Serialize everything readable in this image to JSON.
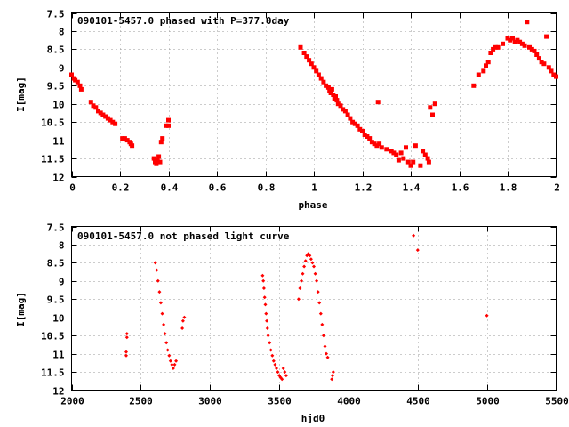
{
  "chart_data": [
    {
      "type": "scatter",
      "title": "090101-5457.0 phased with P=377.0day",
      "xlabel": "phase",
      "ylabel": "I[mag]",
      "xlim": [
        0,
        2
      ],
      "ylim": [
        7.5,
        12
      ],
      "y_reversed": true,
      "grid": true,
      "marker": "filled square",
      "marker_color": "#ff0000",
      "x_ticks": [
        "0",
        "0.2",
        "0.4",
        "0.6",
        "0.8",
        "1",
        "1.2",
        "1.4",
        "1.6",
        "1.8",
        "2"
      ],
      "y_ticks": [
        "7.5",
        "8",
        "8.5",
        "9",
        "9.5",
        "10",
        "10.5",
        "11",
        "11.5",
        "12"
      ],
      "series": [
        {
          "points": [
            [
              0.0,
              9.2
            ],
            [
              0.01,
              9.3
            ],
            [
              0.015,
              9.35
            ],
            [
              0.025,
              9.4
            ],
            [
              0.035,
              9.5
            ],
            [
              0.04,
              9.6
            ],
            [
              0.08,
              9.95
            ],
            [
              0.09,
              10.05
            ],
            [
              0.1,
              10.1
            ],
            [
              0.11,
              10.2
            ],
            [
              0.12,
              10.25
            ],
            [
              0.13,
              10.3
            ],
            [
              0.14,
              10.35
            ],
            [
              0.15,
              10.4
            ],
            [
              0.16,
              10.45
            ],
            [
              0.17,
              10.5
            ],
            [
              0.18,
              10.55
            ],
            [
              0.21,
              10.95
            ],
            [
              0.22,
              10.95
            ],
            [
              0.23,
              11.0
            ],
            [
              0.24,
              11.05
            ],
            [
              0.245,
              11.1
            ],
            [
              0.25,
              11.15
            ],
            [
              0.34,
              11.5
            ],
            [
              0.345,
              11.6
            ],
            [
              0.35,
              11.65
            ],
            [
              0.355,
              11.55
            ],
            [
              0.36,
              11.45
            ],
            [
              0.365,
              11.6
            ],
            [
              0.37,
              11.05
            ],
            [
              0.375,
              10.95
            ],
            [
              0.39,
              10.6
            ],
            [
              0.4,
              10.45
            ],
            [
              0.4,
              10.6
            ],
            [
              0.945,
              8.45
            ],
            [
              0.96,
              8.6
            ],
            [
              0.97,
              8.7
            ],
            [
              0.98,
              8.8
            ],
            [
              0.99,
              8.9
            ],
            [
              1.0,
              9.0
            ],
            [
              1.01,
              9.1
            ],
            [
              1.02,
              9.2
            ],
            [
              1.03,
              9.3
            ],
            [
              1.04,
              9.4
            ],
            [
              1.05,
              9.5
            ],
            [
              1.06,
              9.55
            ],
            [
              1.065,
              9.65
            ],
            [
              1.07,
              9.7
            ],
            [
              1.075,
              9.6
            ],
            [
              1.08,
              9.75
            ],
            [
              1.085,
              9.85
            ],
            [
              1.09,
              9.8
            ],
            [
              1.095,
              9.9
            ],
            [
              1.1,
              10.0
            ],
            [
              1.11,
              10.05
            ],
            [
              1.12,
              10.15
            ],
            [
              1.13,
              10.2
            ],
            [
              1.14,
              10.3
            ],
            [
              1.15,
              10.4
            ],
            [
              1.16,
              10.5
            ],
            [
              1.17,
              10.55
            ],
            [
              1.18,
              10.6
            ],
            [
              1.19,
              10.7
            ],
            [
              1.2,
              10.75
            ],
            [
              1.21,
              10.85
            ],
            [
              1.22,
              10.9
            ],
            [
              1.23,
              10.95
            ],
            [
              1.24,
              11.05
            ],
            [
              1.25,
              11.1
            ],
            [
              1.26,
              11.15
            ],
            [
              1.27,
              11.1
            ],
            [
              1.28,
              11.2
            ],
            [
              1.3,
              11.25
            ],
            [
              1.32,
              11.3
            ],
            [
              1.33,
              11.35
            ],
            [
              1.34,
              11.4
            ],
            [
              1.35,
              11.55
            ],
            [
              1.36,
              11.35
            ],
            [
              1.37,
              11.5
            ],
            [
              1.38,
              11.2
            ],
            [
              1.39,
              11.6
            ],
            [
              1.4,
              11.7
            ],
            [
              1.41,
              11.6
            ],
            [
              1.42,
              11.15
            ],
            [
              1.44,
              11.7
            ],
            [
              1.45,
              11.3
            ],
            [
              1.46,
              11.4
            ],
            [
              1.47,
              11.5
            ],
            [
              1.475,
              11.6
            ],
            [
              1.265,
              9.95
            ],
            [
              1.48,
              10.1
            ],
            [
              1.49,
              10.3
            ],
            [
              1.5,
              10.0
            ],
            [
              1.66,
              9.5
            ],
            [
              1.68,
              9.2
            ],
            [
              1.7,
              9.1
            ],
            [
              1.71,
              8.95
            ],
            [
              1.72,
              8.85
            ],
            [
              1.73,
              8.6
            ],
            [
              1.74,
              8.5
            ],
            [
              1.75,
              8.45
            ],
            [
              1.76,
              8.45
            ],
            [
              1.78,
              8.35
            ],
            [
              1.8,
              8.2
            ],
            [
              1.81,
              8.25
            ],
            [
              1.82,
              8.2
            ],
            [
              1.83,
              8.3
            ],
            [
              1.84,
              8.25
            ],
            [
              1.85,
              8.3
            ],
            [
              1.86,
              8.35
            ],
            [
              1.87,
              8.4
            ],
            [
              1.88,
              7.75
            ],
            [
              1.89,
              8.45
            ],
            [
              1.9,
              8.5
            ],
            [
              1.91,
              8.55
            ],
            [
              1.92,
              8.65
            ],
            [
              1.93,
              8.75
            ],
            [
              1.94,
              8.85
            ],
            [
              1.95,
              8.9
            ],
            [
              1.96,
              8.15
            ],
            [
              1.97,
              9.0
            ],
            [
              1.98,
              9.1
            ],
            [
              1.99,
              9.2
            ],
            [
              2.0,
              9.25
            ]
          ]
        }
      ]
    },
    {
      "type": "scatter",
      "title": "090101-5457.0 not phased light curve",
      "xlabel": "hjd0",
      "ylabel": "I[mag]",
      "xlim": [
        2000,
        5500
      ],
      "ylim": [
        7.5,
        12
      ],
      "y_reversed": true,
      "grid": true,
      "marker": "small filled diamond",
      "marker_color": "#ff0000",
      "x_ticks": [
        "2000",
        "2500",
        "3000",
        "3500",
        "4000",
        "4500",
        "5000",
        "5500"
      ],
      "y_ticks": [
        "7.5",
        "8",
        "8.5",
        "9",
        "9.5",
        "10",
        "10.5",
        "11",
        "11.5",
        "12"
      ],
      "series": [
        {
          "points": [
            [
              2395,
              10.95
            ],
            [
              2395,
              11.05
            ],
            [
              2400,
              10.45
            ],
            [
              2400,
              10.55
            ],
            [
              2605,
              8.5
            ],
            [
              2615,
              8.7
            ],
            [
              2625,
              9.0
            ],
            [
              2635,
              9.3
            ],
            [
              2645,
              9.6
            ],
            [
              2655,
              9.9
            ],
            [
              2665,
              10.2
            ],
            [
              2675,
              10.45
            ],
            [
              2685,
              10.7
            ],
            [
              2695,
              10.9
            ],
            [
              2705,
              11.05
            ],
            [
              2715,
              11.2
            ],
            [
              2725,
              11.3
            ],
            [
              2735,
              11.4
            ],
            [
              2745,
              11.3
            ],
            [
              2755,
              11.2
            ],
            [
              2800,
              10.3
            ],
            [
              2805,
              10.1
            ],
            [
              2815,
              10.0
            ],
            [
              3380,
              8.85
            ],
            [
              3385,
              9.0
            ],
            [
              3390,
              9.2
            ],
            [
              3395,
              9.45
            ],
            [
              3400,
              9.65
            ],
            [
              3405,
              9.9
            ],
            [
              3410,
              10.1
            ],
            [
              3415,
              10.3
            ],
            [
              3420,
              10.5
            ],
            [
              3430,
              10.7
            ],
            [
              3440,
              10.9
            ],
            [
              3450,
              11.05
            ],
            [
              3460,
              11.2
            ],
            [
              3470,
              11.3
            ],
            [
              3480,
              11.4
            ],
            [
              3490,
              11.5
            ],
            [
              3500,
              11.6
            ],
            [
              3510,
              11.65
            ],
            [
              3520,
              11.7
            ],
            [
              3530,
              11.4
            ],
            [
              3540,
              11.5
            ],
            [
              3550,
              11.6
            ],
            [
              3640,
              9.5
            ],
            [
              3650,
              9.2
            ],
            [
              3660,
              9.0
            ],
            [
              3670,
              8.8
            ],
            [
              3680,
              8.6
            ],
            [
              3690,
              8.45
            ],
            [
              3700,
              8.3
            ],
            [
              3710,
              8.25
            ],
            [
              3720,
              8.3
            ],
            [
              3730,
              8.4
            ],
            [
              3740,
              8.5
            ],
            [
              3750,
              8.6
            ],
            [
              3760,
              8.8
            ],
            [
              3770,
              9.0
            ],
            [
              3780,
              9.3
            ],
            [
              3790,
              9.6
            ],
            [
              3800,
              9.9
            ],
            [
              3810,
              10.2
            ],
            [
              3820,
              10.5
            ],
            [
              3830,
              10.8
            ],
            [
              3840,
              11.0
            ],
            [
              3850,
              11.1
            ],
            [
              3880,
              11.7
            ],
            [
              3885,
              11.6
            ],
            [
              3890,
              11.5
            ],
            [
              4470,
              7.75
            ],
            [
              4500,
              8.15
            ],
            [
              5000,
              9.95
            ]
          ]
        }
      ]
    }
  ]
}
